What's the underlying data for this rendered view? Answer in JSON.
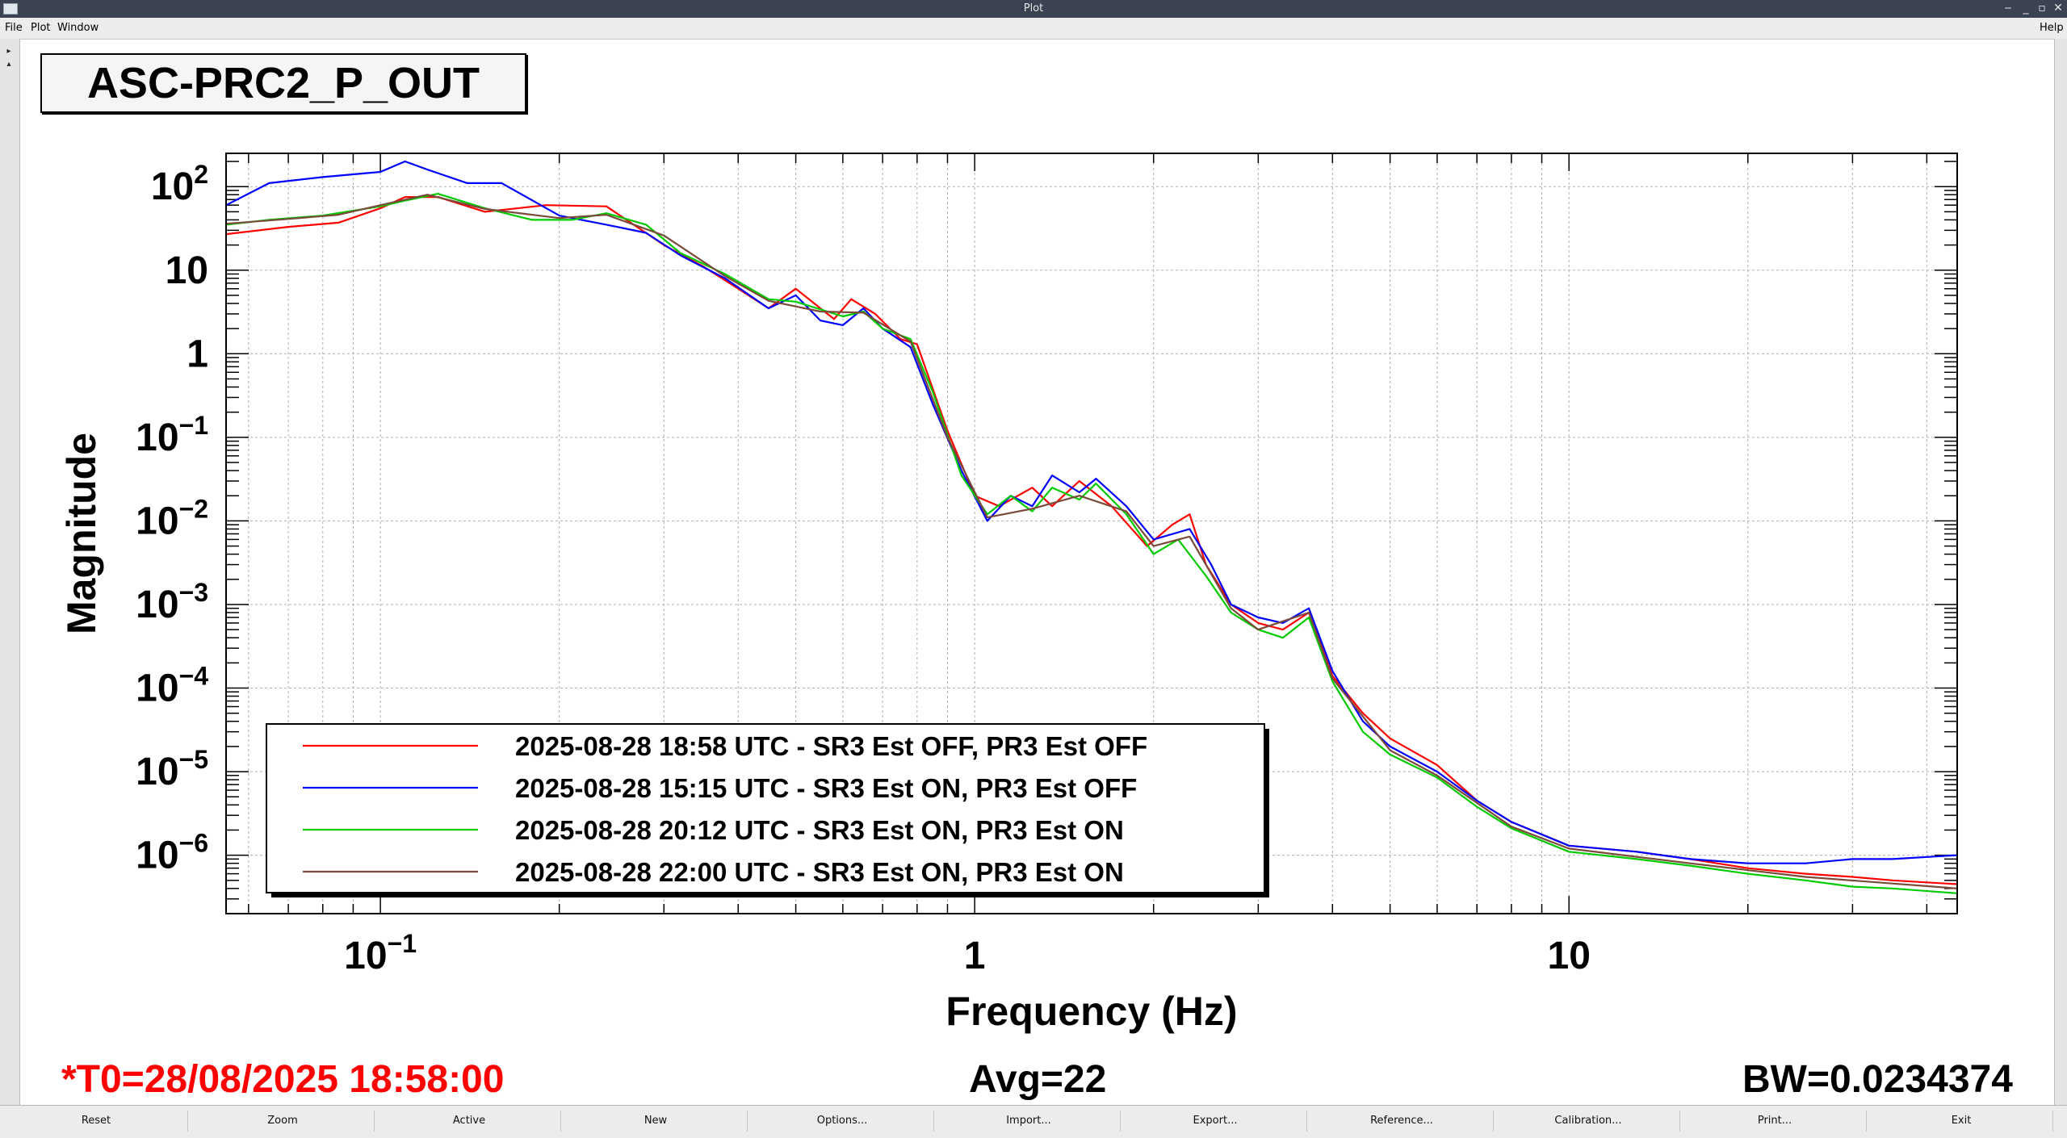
{
  "window": {
    "title": "Plot",
    "help_label": "Help"
  },
  "menu": {
    "items": [
      "File",
      "Plot",
      "Window"
    ]
  },
  "plot_title": "ASC-PRC2_P_OUT",
  "status": {
    "t0": "*T0=28/08/2025 18:58:00",
    "avg": "Avg=22",
    "bw": "BW=0.0234374",
    "t0_color": "#ff0000"
  },
  "toolbar": {
    "buttons": [
      "Reset",
      "Zoom",
      "Active",
      "New",
      "Options...",
      "Import...",
      "Export...",
      "Reference...",
      "Calibration...",
      "Print...",
      "Exit"
    ]
  },
  "chart_data": {
    "type": "line",
    "title": "",
    "xlabel": "Frequency (Hz)",
    "ylabel": "Magnitude",
    "xscale": "log",
    "yscale": "log",
    "xlim": [
      0.055,
      45
    ],
    "ylim": [
      2e-07,
      250
    ],
    "grid": true,
    "legend_position": "lower-left",
    "x_tick_labels": [
      {
        "value": 0.1,
        "base": "10",
        "exp": "−1"
      },
      {
        "value": 1,
        "base": "1",
        "exp": ""
      },
      {
        "value": 10,
        "base": "10",
        "exp": ""
      }
    ],
    "y_tick_labels": [
      {
        "value": 100,
        "base": "10",
        "exp": "2"
      },
      {
        "value": 10,
        "base": "10",
        "exp": ""
      },
      {
        "value": 1,
        "base": "1",
        "exp": ""
      },
      {
        "value": 0.1,
        "base": "10",
        "exp": "−1"
      },
      {
        "value": 0.01,
        "base": "10",
        "exp": "−2"
      },
      {
        "value": 0.001,
        "base": "10",
        "exp": "−3"
      },
      {
        "value": 0.0001,
        "base": "10",
        "exp": "−4"
      },
      {
        "value": 1e-05,
        "base": "10",
        "exp": "−5"
      },
      {
        "value": 1e-06,
        "base": "10",
        "exp": "−6"
      }
    ],
    "series": [
      {
        "name": "2025-08-28 18:58 UTC - SR3 Est OFF, PR3 Est OFF",
        "color": "#ff0000",
        "points": [
          [
            0.055,
            27
          ],
          [
            0.07,
            33
          ],
          [
            0.085,
            37
          ],
          [
            0.1,
            55
          ],
          [
            0.11,
            75
          ],
          [
            0.125,
            75
          ],
          [
            0.15,
            50
          ],
          [
            0.19,
            60
          ],
          [
            0.24,
            58
          ],
          [
            0.3,
            20
          ],
          [
            0.35,
            11
          ],
          [
            0.4,
            6
          ],
          [
            0.45,
            3.5
          ],
          [
            0.5,
            6
          ],
          [
            0.55,
            3.5
          ],
          [
            0.58,
            2.6
          ],
          [
            0.62,
            4.5
          ],
          [
            0.68,
            3
          ],
          [
            0.75,
            1.5
          ],
          [
            0.8,
            1.3
          ],
          [
            0.9,
            0.12
          ],
          [
            1.0,
            0.02
          ],
          [
            1.1,
            0.015
          ],
          [
            1.25,
            0.025
          ],
          [
            1.35,
            0.015
          ],
          [
            1.5,
            0.03
          ],
          [
            1.7,
            0.015
          ],
          [
            1.95,
            0.005
          ],
          [
            2.15,
            0.009
          ],
          [
            2.3,
            0.012
          ],
          [
            2.45,
            0.003
          ],
          [
            2.7,
            0.001
          ],
          [
            3.0,
            0.0006
          ],
          [
            3.3,
            0.0005
          ],
          [
            3.65,
            0.0008
          ],
          [
            4.0,
            0.00014
          ],
          [
            4.5,
            5e-05
          ],
          [
            5.0,
            2.5e-05
          ],
          [
            6.0,
            1.2e-05
          ],
          [
            7.0,
            4.5e-06
          ],
          [
            8.0,
            2.5e-06
          ],
          [
            10.0,
            1.3e-06
          ],
          [
            13.0,
            1.1e-06
          ],
          [
            16.0,
            9e-07
          ],
          [
            20.0,
            7e-07
          ],
          [
            25.0,
            6e-07
          ],
          [
            30.0,
            5.5e-07
          ],
          [
            35.0,
            5e-07
          ],
          [
            45.0,
            4.5e-07
          ]
        ]
      },
      {
        "name": "2025-08-28 15:15 UTC - SR3 Est ON, PR3 Est OFF",
        "color": "#0000ff",
        "points": [
          [
            0.055,
            60
          ],
          [
            0.065,
            110
          ],
          [
            0.08,
            130
          ],
          [
            0.1,
            150
          ],
          [
            0.11,
            200
          ],
          [
            0.12,
            160
          ],
          [
            0.14,
            110
          ],
          [
            0.16,
            110
          ],
          [
            0.2,
            45
          ],
          [
            0.24,
            35
          ],
          [
            0.28,
            28
          ],
          [
            0.32,
            15
          ],
          [
            0.38,
            8
          ],
          [
            0.45,
            3.5
          ],
          [
            0.5,
            5
          ],
          [
            0.55,
            2.5
          ],
          [
            0.6,
            2.2
          ],
          [
            0.65,
            3.5
          ],
          [
            0.7,
            2
          ],
          [
            0.78,
            1.2
          ],
          [
            0.85,
            0.25
          ],
          [
            0.95,
            0.04
          ],
          [
            1.05,
            0.01
          ],
          [
            1.15,
            0.02
          ],
          [
            1.25,
            0.015
          ],
          [
            1.35,
            0.035
          ],
          [
            1.5,
            0.022
          ],
          [
            1.6,
            0.032
          ],
          [
            1.8,
            0.015
          ],
          [
            2.0,
            0.006
          ],
          [
            2.3,
            0.008
          ],
          [
            2.5,
            0.003
          ],
          [
            2.7,
            0.001
          ],
          [
            3.0,
            0.0007
          ],
          [
            3.3,
            0.0006
          ],
          [
            3.65,
            0.0009
          ],
          [
            4.0,
            0.00016
          ],
          [
            4.5,
            4e-05
          ],
          [
            5.0,
            2e-05
          ],
          [
            6.0,
            1e-05
          ],
          [
            7.0,
            4.5e-06
          ],
          [
            8.0,
            2.5e-06
          ],
          [
            10.0,
            1.3e-06
          ],
          [
            13.0,
            1.1e-06
          ],
          [
            16.0,
            9e-07
          ],
          [
            20.0,
            8e-07
          ],
          [
            25.0,
            8e-07
          ],
          [
            30.0,
            9e-07
          ],
          [
            35.0,
            9e-07
          ],
          [
            45.0,
            1e-06
          ]
        ]
      },
      {
        "name": "2025-08-28 20:12 UTC - SR3 Est ON, PR3 Est ON",
        "color": "#00cc00",
        "points": [
          [
            0.055,
            35
          ],
          [
            0.065,
            40
          ],
          [
            0.08,
            45
          ],
          [
            0.1,
            58
          ],
          [
            0.11,
            68
          ],
          [
            0.125,
            82
          ],
          [
            0.15,
            55
          ],
          [
            0.18,
            40
          ],
          [
            0.21,
            40
          ],
          [
            0.24,
            48
          ],
          [
            0.28,
            35
          ],
          [
            0.32,
            16
          ],
          [
            0.38,
            9
          ],
          [
            0.45,
            4.5
          ],
          [
            0.5,
            4.2
          ],
          [
            0.55,
            3.4
          ],
          [
            0.6,
            2.8
          ],
          [
            0.65,
            3.2
          ],
          [
            0.7,
            2
          ],
          [
            0.78,
            1.5
          ],
          [
            0.85,
            0.35
          ],
          [
            0.95,
            0.035
          ],
          [
            1.05,
            0.012
          ],
          [
            1.15,
            0.02
          ],
          [
            1.25,
            0.013
          ],
          [
            1.35,
            0.025
          ],
          [
            1.5,
            0.018
          ],
          [
            1.6,
            0.028
          ],
          [
            1.8,
            0.012
          ],
          [
            2.0,
            0.004
          ],
          [
            2.2,
            0.006
          ],
          [
            2.45,
            0.0022
          ],
          [
            2.7,
            0.0008
          ],
          [
            3.0,
            0.0005
          ],
          [
            3.3,
            0.0004
          ],
          [
            3.65,
            0.0007
          ],
          [
            4.0,
            0.00012
          ],
          [
            4.5,
            3e-05
          ],
          [
            5.0,
            1.6e-05
          ],
          [
            6.0,
            8.5e-06
          ],
          [
            7.0,
            3.8e-06
          ],
          [
            8.0,
            2.1e-06
          ],
          [
            10.0,
            1.1e-06
          ],
          [
            13.0,
            9e-07
          ],
          [
            16.0,
            7.5e-07
          ],
          [
            20.0,
            6e-07
          ],
          [
            25.0,
            5e-07
          ],
          [
            30.0,
            4.2e-07
          ],
          [
            35.0,
            4e-07
          ],
          [
            45.0,
            3.5e-07
          ]
        ]
      },
      {
        "name": "2025-08-28 22:00 UTC - SR3 Est ON, PR3 Est ON",
        "color": "#7a4a3a",
        "points": [
          [
            0.055,
            36
          ],
          [
            0.07,
            41
          ],
          [
            0.085,
            46
          ],
          [
            0.1,
            60
          ],
          [
            0.12,
            80
          ],
          [
            0.15,
            54
          ],
          [
            0.2,
            42
          ],
          [
            0.24,
            46
          ],
          [
            0.3,
            26
          ],
          [
            0.38,
            8.5
          ],
          [
            0.45,
            4.3
          ],
          [
            0.55,
            3.2
          ],
          [
            0.65,
            3.1
          ],
          [
            0.78,
            1.4
          ],
          [
            0.9,
            0.1
          ],
          [
            1.05,
            0.011
          ],
          [
            1.25,
            0.014
          ],
          [
            1.5,
            0.02
          ],
          [
            1.8,
            0.013
          ],
          [
            2.0,
            0.005
          ],
          [
            2.3,
            0.0065
          ],
          [
            2.7,
            0.0009
          ],
          [
            3.0,
            0.0005
          ],
          [
            3.65,
            0.0008
          ],
          [
            4.0,
            0.00013
          ],
          [
            5.0,
            1.8e-05
          ],
          [
            6.0,
            9e-06
          ],
          [
            8.0,
            2.2e-06
          ],
          [
            10.0,
            1.2e-06
          ],
          [
            16.0,
            8e-07
          ],
          [
            25.0,
            5.5e-07
          ],
          [
            45.0,
            4e-07
          ]
        ]
      }
    ]
  }
}
